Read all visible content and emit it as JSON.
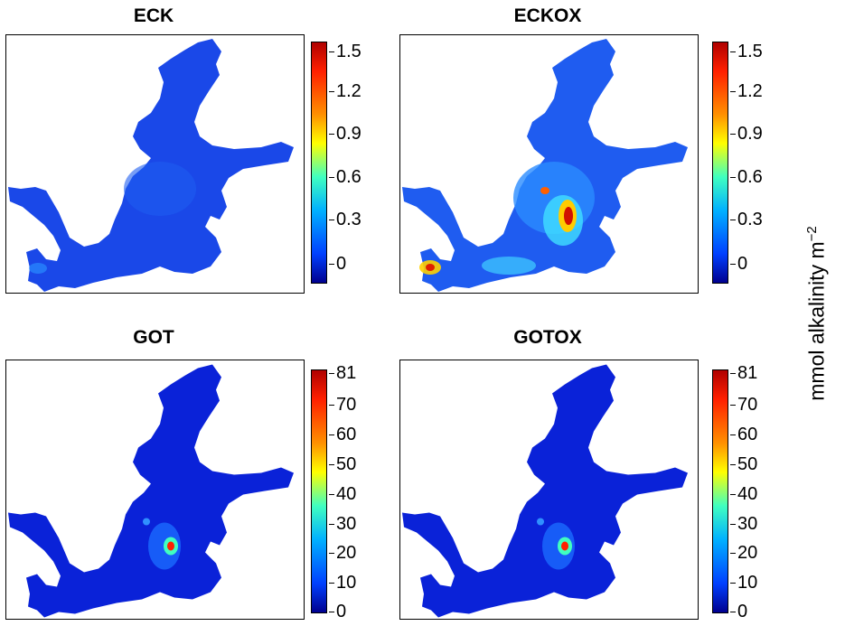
{
  "panels": [
    {
      "title": "ECK",
      "ticks": [
        "1.5",
        "1.2",
        "0.9",
        "0.6",
        "0.3",
        "0"
      ]
    },
    {
      "title": "ECKOX",
      "ticks": [
        "1.5",
        "1.2",
        "0.9",
        "0.6",
        "0.3",
        "0"
      ]
    },
    {
      "title": "GOT",
      "ticks": [
        "81",
        "70",
        "60",
        "50",
        "40",
        "30",
        "20",
        "10",
        "0"
      ]
    },
    {
      "title": "GOTOX",
      "ticks": [
        "81",
        "70",
        "60",
        "50",
        "40",
        "30",
        "20",
        "10",
        "0"
      ]
    }
  ],
  "unit_label": {
    "text": "mmol alkalinity m",
    "exponent": "−2"
  },
  "colorscale": [
    "#00007f",
    "#0000ff",
    "#007fff",
    "#00ffff",
    "#7fff7f",
    "#ffff00",
    "#ff7f00",
    "#ff0000",
    "#7f0000"
  ]
}
